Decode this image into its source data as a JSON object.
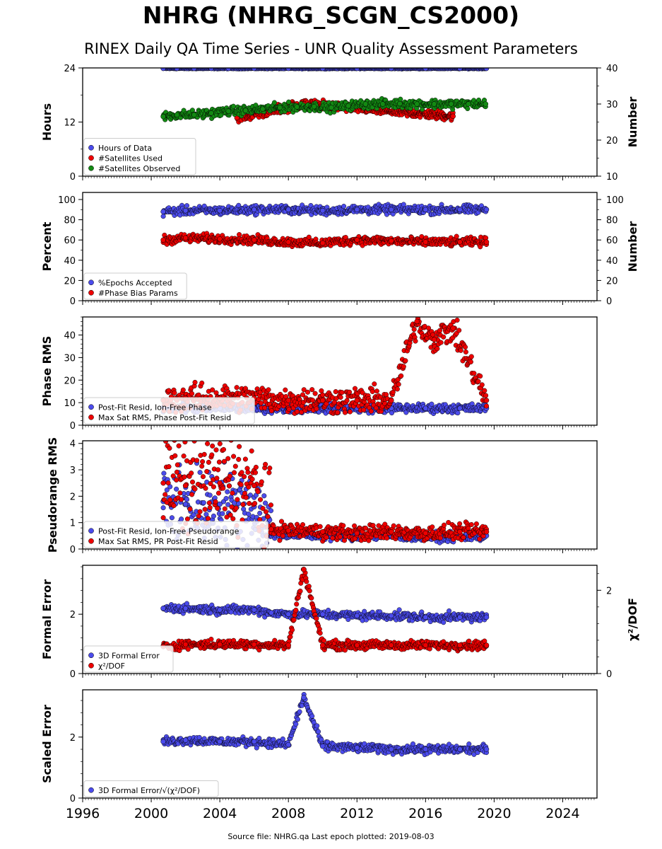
{
  "title": "NHRG (NHRG_SCGN_CS2000)",
  "subtitle": "RINEX Daily QA Time Series - UNR Quality Assessment Parameters",
  "footer": "Source file: NHRG.qa Last epoch plotted: 2019-08-03",
  "colors": {
    "blue": "#4b4bec",
    "red": "#ee0000",
    "green": "#138a13"
  },
  "chart_data": [
    {
      "type": "scatter",
      "ylabel": "Hours",
      "ylim": [
        0,
        24
      ],
      "yticks": [
        0,
        12,
        24
      ],
      "y2label": "Number",
      "y2lim": [
        10,
        40
      ],
      "y2ticks": [
        10,
        20,
        30,
        40
      ],
      "xlim": [
        1996,
        2026
      ],
      "xticks": [
        1996,
        2000,
        2004,
        2008,
        2012,
        2016,
        2020,
        2024
      ],
      "legend_position": "lower-left",
      "series": [
        {
          "name": "Hours of Data",
          "color": "blue",
          "axis": "left",
          "x": [
            2000.7,
            2001.5,
            2002.5,
            2003.5,
            2004.5,
            2006,
            2008,
            2010,
            2012,
            2014,
            2016,
            2018,
            2019.55
          ],
          "y": [
            23.9,
            23.9,
            23.9,
            23.9,
            23.9,
            23.9,
            23.9,
            23.9,
            23.9,
            23.9,
            23.9,
            23.9,
            23.9
          ]
        },
        {
          "name": "#Satellites Used",
          "color": "red",
          "axis": "right",
          "x": [
            2005.0,
            2008.9,
            2017.6
          ],
          "y": [
            26.2,
            30,
            26.6
          ]
        },
        {
          "name": "#Satellites Observed",
          "color": "green",
          "axis": "right",
          "x": [
            2000.7,
            2001.5,
            2002.5,
            2003.5,
            2004.5,
            2005.5,
            2006.5,
            2007.5,
            2008.5,
            2009.5,
            2010.5,
            2011.5,
            2012.5,
            2013.5,
            2014.5,
            2015.5,
            2016.5,
            2017.5,
            2018.5,
            2019.5
          ],
          "y": [
            26.5,
            27,
            27,
            27.5,
            28,
            28.2,
            28.6,
            29,
            29.2,
            29.3,
            29,
            29.5,
            30,
            30,
            30.1,
            30,
            30,
            30,
            30,
            30
          ]
        }
      ]
    },
    {
      "type": "scatter",
      "ylabel": "Percent",
      "ylim": [
        0,
        107
      ],
      "yticks": [
        0,
        20,
        40,
        60,
        80,
        100
      ],
      "y2label": "Number",
      "y2lim": [
        0,
        107
      ],
      "y2ticks": [
        0,
        20,
        40,
        60,
        80,
        100
      ],
      "xlim": [
        1996,
        2026
      ],
      "xticks": [
        1996,
        2000,
        2004,
        2008,
        2012,
        2016,
        2020,
        2024
      ],
      "legend_position": "lower-left",
      "series": [
        {
          "name": "%Epochs Accepted",
          "color": "blue",
          "axis": "left",
          "x": [
            2000.7,
            2002,
            2004,
            2006,
            2008,
            2010,
            2012,
            2014,
            2016,
            2018,
            2019.55
          ],
          "y": [
            88,
            89,
            89,
            90,
            90,
            89,
            90,
            90,
            90,
            90,
            90
          ]
        },
        {
          "name": "#Phase Bias Params",
          "color": "red",
          "axis": "right",
          "x": [
            2000.7,
            2002,
            2004,
            2006,
            2008,
            2010,
            2012,
            2014,
            2016,
            2018,
            2019.55
          ],
          "y": [
            60,
            62,
            61,
            60,
            58,
            57,
            60,
            59,
            58,
            58,
            58
          ]
        }
      ]
    },
    {
      "type": "scatter",
      "ylabel": "Phase RMS",
      "ylim": [
        0,
        48
      ],
      "yticks": [
        0,
        10,
        20,
        30,
        40
      ],
      "xlim": [
        1996,
        2026
      ],
      "xticks": [
        1996,
        2000,
        2004,
        2008,
        2012,
        2016,
        2020,
        2024
      ],
      "legend_position": "lower-left",
      "series": [
        {
          "name": "Post-Fit Resid, Ion-Free Phase",
          "color": "blue",
          "axis": "left",
          "x": [
            2000.7,
            2002,
            2004,
            2006,
            2008,
            2010,
            2012,
            2014,
            2016,
            2018,
            2019.55
          ],
          "y": [
            8,
            7.5,
            7.5,
            7.5,
            7.5,
            7.5,
            7.5,
            7.5,
            7.5,
            7.5,
            7.5
          ]
        },
        {
          "name": "Max Sat RMS, Phase Post-Fit Resid",
          "color": "red",
          "axis": "left",
          "x": [
            2000.7,
            2002,
            2004,
            2006,
            2008,
            2010,
            2012,
            2014,
            2015.5,
            2016.5,
            2017.6,
            2019.55
          ],
          "y": [
            11,
            12,
            12,
            12,
            11,
            11,
            11,
            11,
            46,
            38,
            43,
            11
          ]
        }
      ]
    },
    {
      "type": "scatter",
      "ylabel": "Pseudorange RMS",
      "ylim": [
        0,
        4.1
      ],
      "yticks": [
        0,
        1,
        2,
        3,
        4
      ],
      "xlim": [
        1996,
        2026
      ],
      "xticks": [
        1996,
        2000,
        2004,
        2008,
        2012,
        2016,
        2020,
        2024
      ],
      "legend_position": "lower-left",
      "series": [
        {
          "name": "Post-Fit Resid, Ion-Free Pseudorange",
          "color": "blue",
          "axis": "left",
          "x": [
            2000.7,
            2002,
            2004,
            2006,
            2007,
            2008,
            2010,
            2012,
            2014,
            2016,
            2018,
            2019.55
          ],
          "y": [
            1.8,
            1.7,
            1.7,
            1.6,
            0.6,
            0.55,
            0.5,
            0.5,
            0.5,
            0.45,
            0.45,
            0.5
          ]
        },
        {
          "name": "Max Sat RMS, PR Post-Fit Resid",
          "color": "red",
          "axis": "left",
          "x": [
            2000.7,
            2002,
            2004,
            2006,
            2007,
            2008,
            2010,
            2012,
            2014,
            2016,
            2018,
            2019.55
          ],
          "y": [
            2.5,
            2.4,
            2.5,
            2.4,
            0.75,
            0.7,
            0.65,
            0.6,
            0.65,
            0.6,
            0.65,
            0.65
          ]
        }
      ]
    },
    {
      "type": "scatter",
      "ylabel": "Formal Error",
      "ylim": [
        0,
        3.65
      ],
      "yticks": [
        0,
        2
      ],
      "y2label": "χ²/DOF",
      "y2lim": [
        0,
        2.6
      ],
      "y2ticks": [
        0,
        2
      ],
      "xlim": [
        1996,
        2026
      ],
      "xticks": [
        1996,
        2000,
        2004,
        2008,
        2012,
        2016,
        2020,
        2024
      ],
      "legend_position": "lower-left",
      "series": [
        {
          "name": "3D Formal Error",
          "color": "blue",
          "axis": "left",
          "x": [
            2000.7,
            2002,
            2004,
            2006,
            2007,
            2008,
            2010,
            2012,
            2014,
            2016,
            2018,
            2019.55
          ],
          "y": [
            2.2,
            2.2,
            2.15,
            2.15,
            2.05,
            2.0,
            2.0,
            1.95,
            1.95,
            1.9,
            1.9,
            1.9
          ]
        },
        {
          "name": "χ²/DOF",
          "color": "red",
          "axis": "right",
          "x": [
            2000.7,
            2002,
            2004,
            2006,
            2008,
            2008.9,
            2010,
            2012,
            2014,
            2016,
            2018,
            2019.55
          ],
          "y": [
            0.65,
            0.7,
            0.7,
            0.7,
            0.68,
            2.5,
            0.68,
            0.68,
            0.68,
            0.68,
            0.68,
            0.68
          ]
        }
      ]
    },
    {
      "type": "scatter",
      "ylabel": "Scaled Error",
      "ylim": [
        0,
        3.55
      ],
      "yticks": [
        0,
        2
      ],
      "xlim": [
        1996,
        2026
      ],
      "xticks": [
        1996,
        2000,
        2004,
        2008,
        2012,
        2016,
        2020,
        2024
      ],
      "xtick_labels": [
        "1996",
        "2000",
        "2004",
        "2008",
        "2012",
        "2016",
        "2020",
        "2024"
      ],
      "legend_position": "lower-left",
      "series": [
        {
          "name": "3D Formal Error/√(χ²/DOF)",
          "color": "blue",
          "axis": "left",
          "x": [
            2000.7,
            2002,
            2004,
            2006,
            2008,
            2008.9,
            2010,
            2012,
            2014,
            2016,
            2018,
            2019.55
          ],
          "y": [
            1.85,
            1.9,
            1.85,
            1.85,
            1.75,
            3.3,
            1.7,
            1.65,
            1.6,
            1.6,
            1.6,
            1.6
          ]
        }
      ]
    }
  ]
}
